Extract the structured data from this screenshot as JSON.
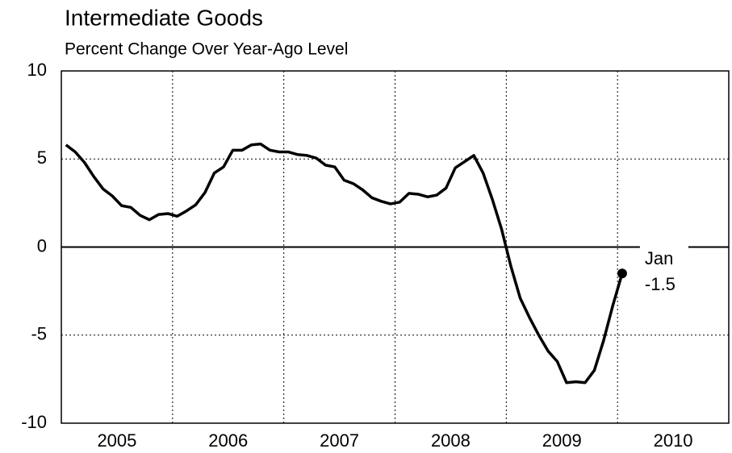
{
  "chart_data": {
    "type": "line",
    "title": "Intermediate Goods",
    "subtitle": "Percent Change Over Year-Ago Level",
    "x": [
      "2005-01",
      "2005-02",
      "2005-03",
      "2005-04",
      "2005-05",
      "2005-06",
      "2005-07",
      "2005-08",
      "2005-09",
      "2005-10",
      "2005-11",
      "2005-12",
      "2006-01",
      "2006-02",
      "2006-03",
      "2006-04",
      "2006-05",
      "2006-06",
      "2006-07",
      "2006-08",
      "2006-09",
      "2006-10",
      "2006-11",
      "2006-12",
      "2007-01",
      "2007-02",
      "2007-03",
      "2007-04",
      "2007-05",
      "2007-06",
      "2007-07",
      "2007-08",
      "2007-09",
      "2007-10",
      "2007-11",
      "2007-12",
      "2008-01",
      "2008-02",
      "2008-03",
      "2008-04",
      "2008-05",
      "2008-06",
      "2008-07",
      "2008-08",
      "2008-09",
      "2008-10",
      "2008-11",
      "2008-12",
      "2009-01",
      "2009-02",
      "2009-03",
      "2009-04",
      "2009-05",
      "2009-06",
      "2009-07",
      "2009-08",
      "2009-09",
      "2009-10",
      "2009-11",
      "2009-12",
      "2010-01"
    ],
    "values": [
      5.8,
      5.4,
      4.8,
      4.0,
      3.3,
      2.9,
      2.35,
      2.25,
      1.8,
      1.55,
      1.85,
      1.9,
      1.75,
      2.05,
      2.4,
      3.1,
      4.2,
      4.55,
      5.5,
      5.5,
      5.8,
      5.85,
      5.5,
      5.4,
      5.4,
      5.25,
      5.2,
      5.05,
      4.65,
      4.55,
      3.8,
      3.6,
      3.25,
      2.8,
      2.6,
      2.45,
      2.55,
      3.05,
      3.0,
      2.85,
      2.95,
      3.35,
      4.5,
      4.85,
      5.2,
      4.2,
      2.7,
      1.0,
      -1.1,
      -2.9,
      -4.0,
      -5.0,
      -5.9,
      -6.5,
      -7.7,
      -7.65,
      -7.7,
      -7.0,
      -5.3,
      -3.3,
      -1.5
    ],
    "color": "#000000",
    "annotation": "Jan",
    "xlim": [
      "2005-01",
      "2010-12"
    ],
    "xticks": [
      "2005",
      "2006",
      "2007",
      "2008",
      "2009",
      "2010"
    ],
    "ylim": [
      -10,
      10
    ],
    "yticks": [
      -10,
      -5,
      0,
      5,
      10
    ],
    "grid": true
  }
}
